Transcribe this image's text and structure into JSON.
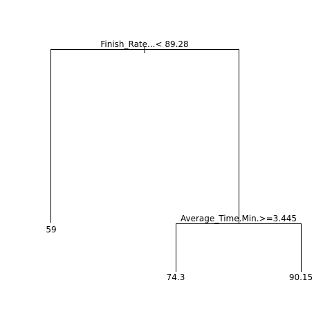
{
  "tree": {
    "root": {
      "split_label": "Finish_Rate...< 89.28"
    },
    "right_node": {
      "split_label": "Average_Time.Min.>=3.445"
    },
    "leaves": [
      {
        "id": "left",
        "value": "59"
      },
      {
        "id": "right-left",
        "value": "74.3"
      },
      {
        "id": "right-right",
        "value": "90.15"
      }
    ]
  }
}
